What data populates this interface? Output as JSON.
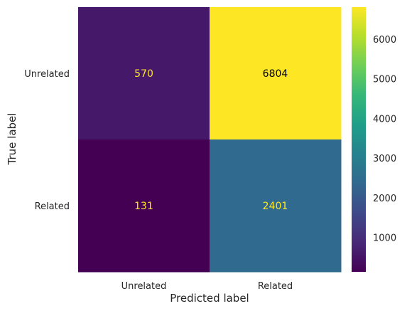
{
  "chart_data": {
    "type": "heatmap",
    "title": "",
    "xlabel": "Predicted label",
    "ylabel": "True label",
    "x_categories": [
      "Unrelated",
      "Related"
    ],
    "y_categories": [
      "Unrelated",
      "Related"
    ],
    "matrix": [
      [
        570,
        6804
      ],
      [
        131,
        2401
      ]
    ],
    "colormap": "viridis",
    "color_range": [
      131,
      6804
    ],
    "colorbar_ticks": [
      1000,
      2000,
      3000,
      4000,
      5000,
      6000
    ],
    "grid": false,
    "low_value_text_color": "#fde725",
    "high_value_text_color": "#000000"
  }
}
